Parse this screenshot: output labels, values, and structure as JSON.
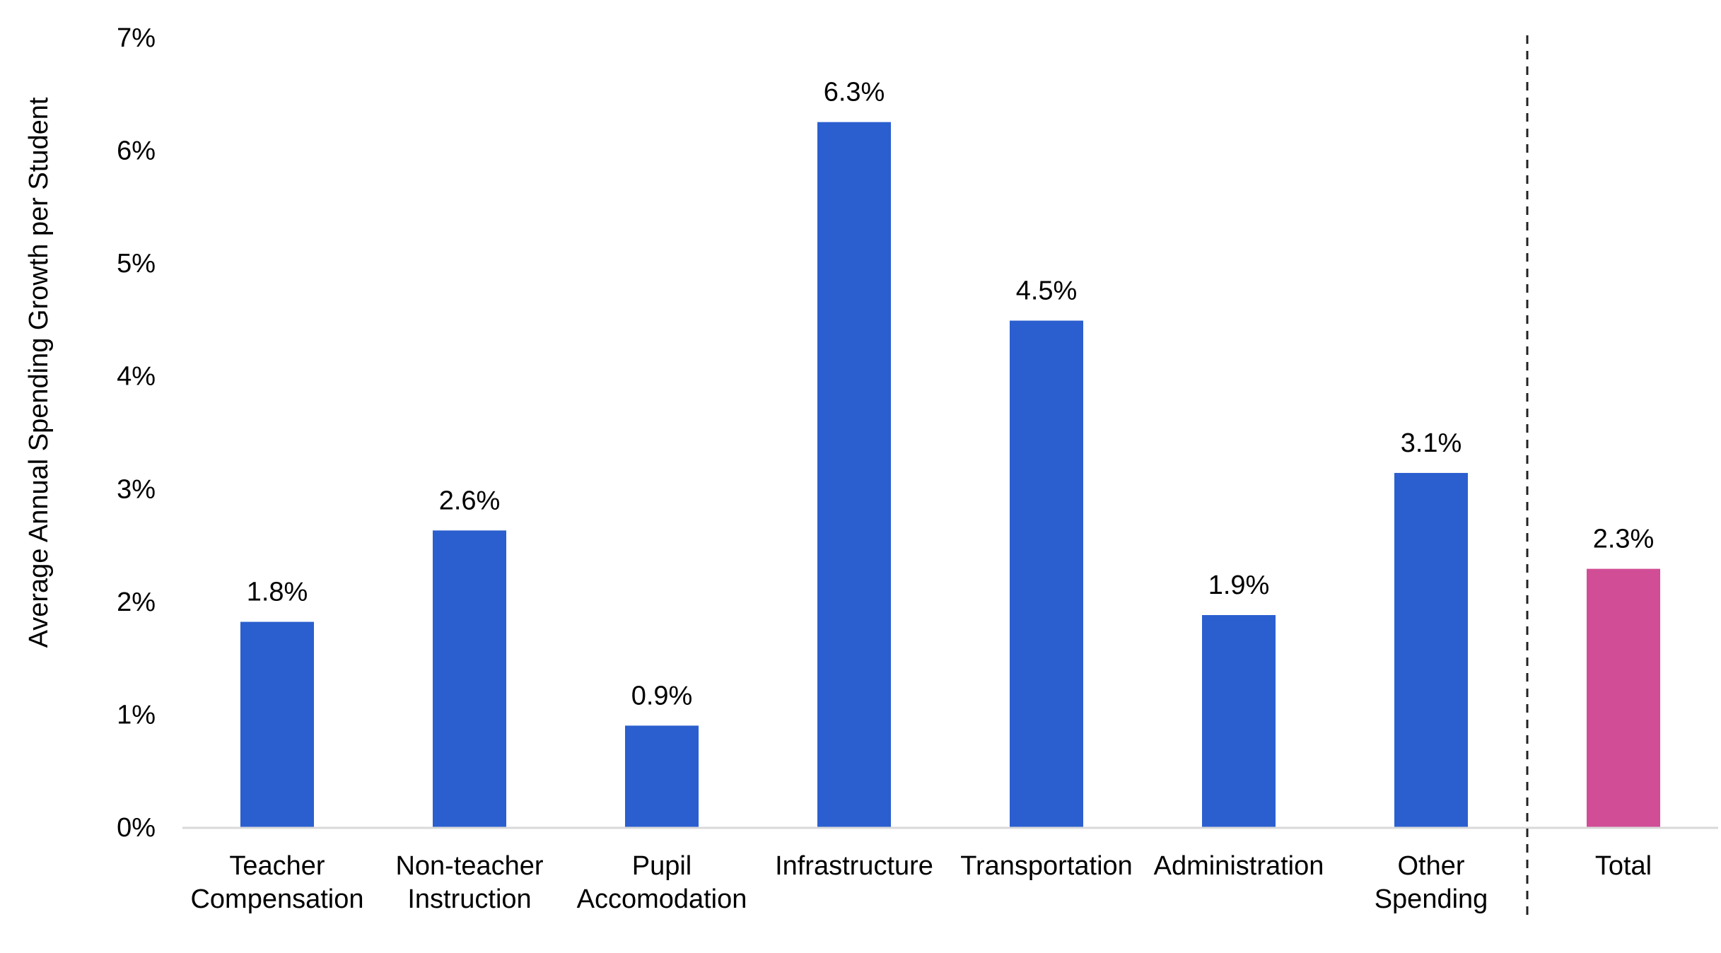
{
  "chart_data": {
    "type": "bar",
    "categories": [
      [
        "Teacher",
        "Compensation"
      ],
      [
        "Non-teacher",
        "Instruction"
      ],
      [
        "Pupil",
        "Accomodation"
      ],
      [
        "Infrastructure"
      ],
      [
        "Transportation"
      ],
      [
        "Administration"
      ],
      [
        "Other",
        "Spending"
      ],
      [
        "Total"
      ]
    ],
    "values": [
      1.8,
      2.6,
      0.9,
      6.3,
      4.5,
      1.9,
      3.1,
      2.3
    ],
    "plotted_values": [
      1.82,
      2.63,
      0.9,
      6.25,
      4.49,
      1.88,
      3.14,
      2.29
    ],
    "data_labels": [
      "1.8%",
      "2.6%",
      "0.9%",
      "6.3%",
      "4.5%",
      "1.9%",
      "3.1%",
      "2.3%"
    ],
    "title": "",
    "xlabel": "",
    "ylabel": "Average Annual Spending Growth per Student",
    "ylim": [
      0,
      7
    ],
    "yticks": [
      0,
      1,
      2,
      3,
      4,
      5,
      6,
      7
    ],
    "ytick_labels": [
      "0%",
      "1%",
      "2%",
      "3%",
      "4%",
      "5%",
      "6%",
      "7%"
    ],
    "grid": false,
    "legend": "none",
    "separator_before_category_index": 7,
    "colors": {
      "bar": "#2b5fcf",
      "highlight": "#d14d96",
      "axis": "#d9d9d9",
      "separator": "#222222"
    },
    "highlight_index": 7
  }
}
